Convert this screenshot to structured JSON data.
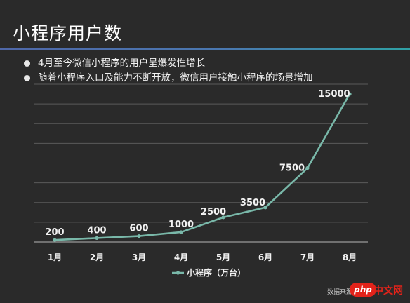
{
  "slide": {
    "title": "小程序用户数",
    "bullets": [
      "4月至今微信小程序的用户呈爆发性增长",
      "随着小程序入口及能力不断开放，微信用户接触小程序的场景增加"
    ],
    "source": "数据来源",
    "watermark": {
      "badge": "php",
      "text": "中文网"
    }
  },
  "colors": {
    "line": "#79b8a9",
    "title_rule": "#4a78b0",
    "watermark": "#e2231a"
  },
  "chart_data": {
    "type": "line",
    "categories": [
      "1月",
      "2月",
      "3月",
      "4月",
      "5月",
      "6月",
      "7月",
      "8月"
    ],
    "series": [
      {
        "name": "小程序（万台）",
        "values": [
          200,
          400,
          600,
          1000,
          2500,
          3500,
          7500,
          15000
        ]
      }
    ],
    "data_labels": [
      "200",
      "400",
      "600",
      "1000",
      "2500",
      "3500",
      "7500",
      "15000"
    ],
    "ylim": [
      0,
      16000
    ],
    "grid": true,
    "legend_position": "bottom"
  }
}
